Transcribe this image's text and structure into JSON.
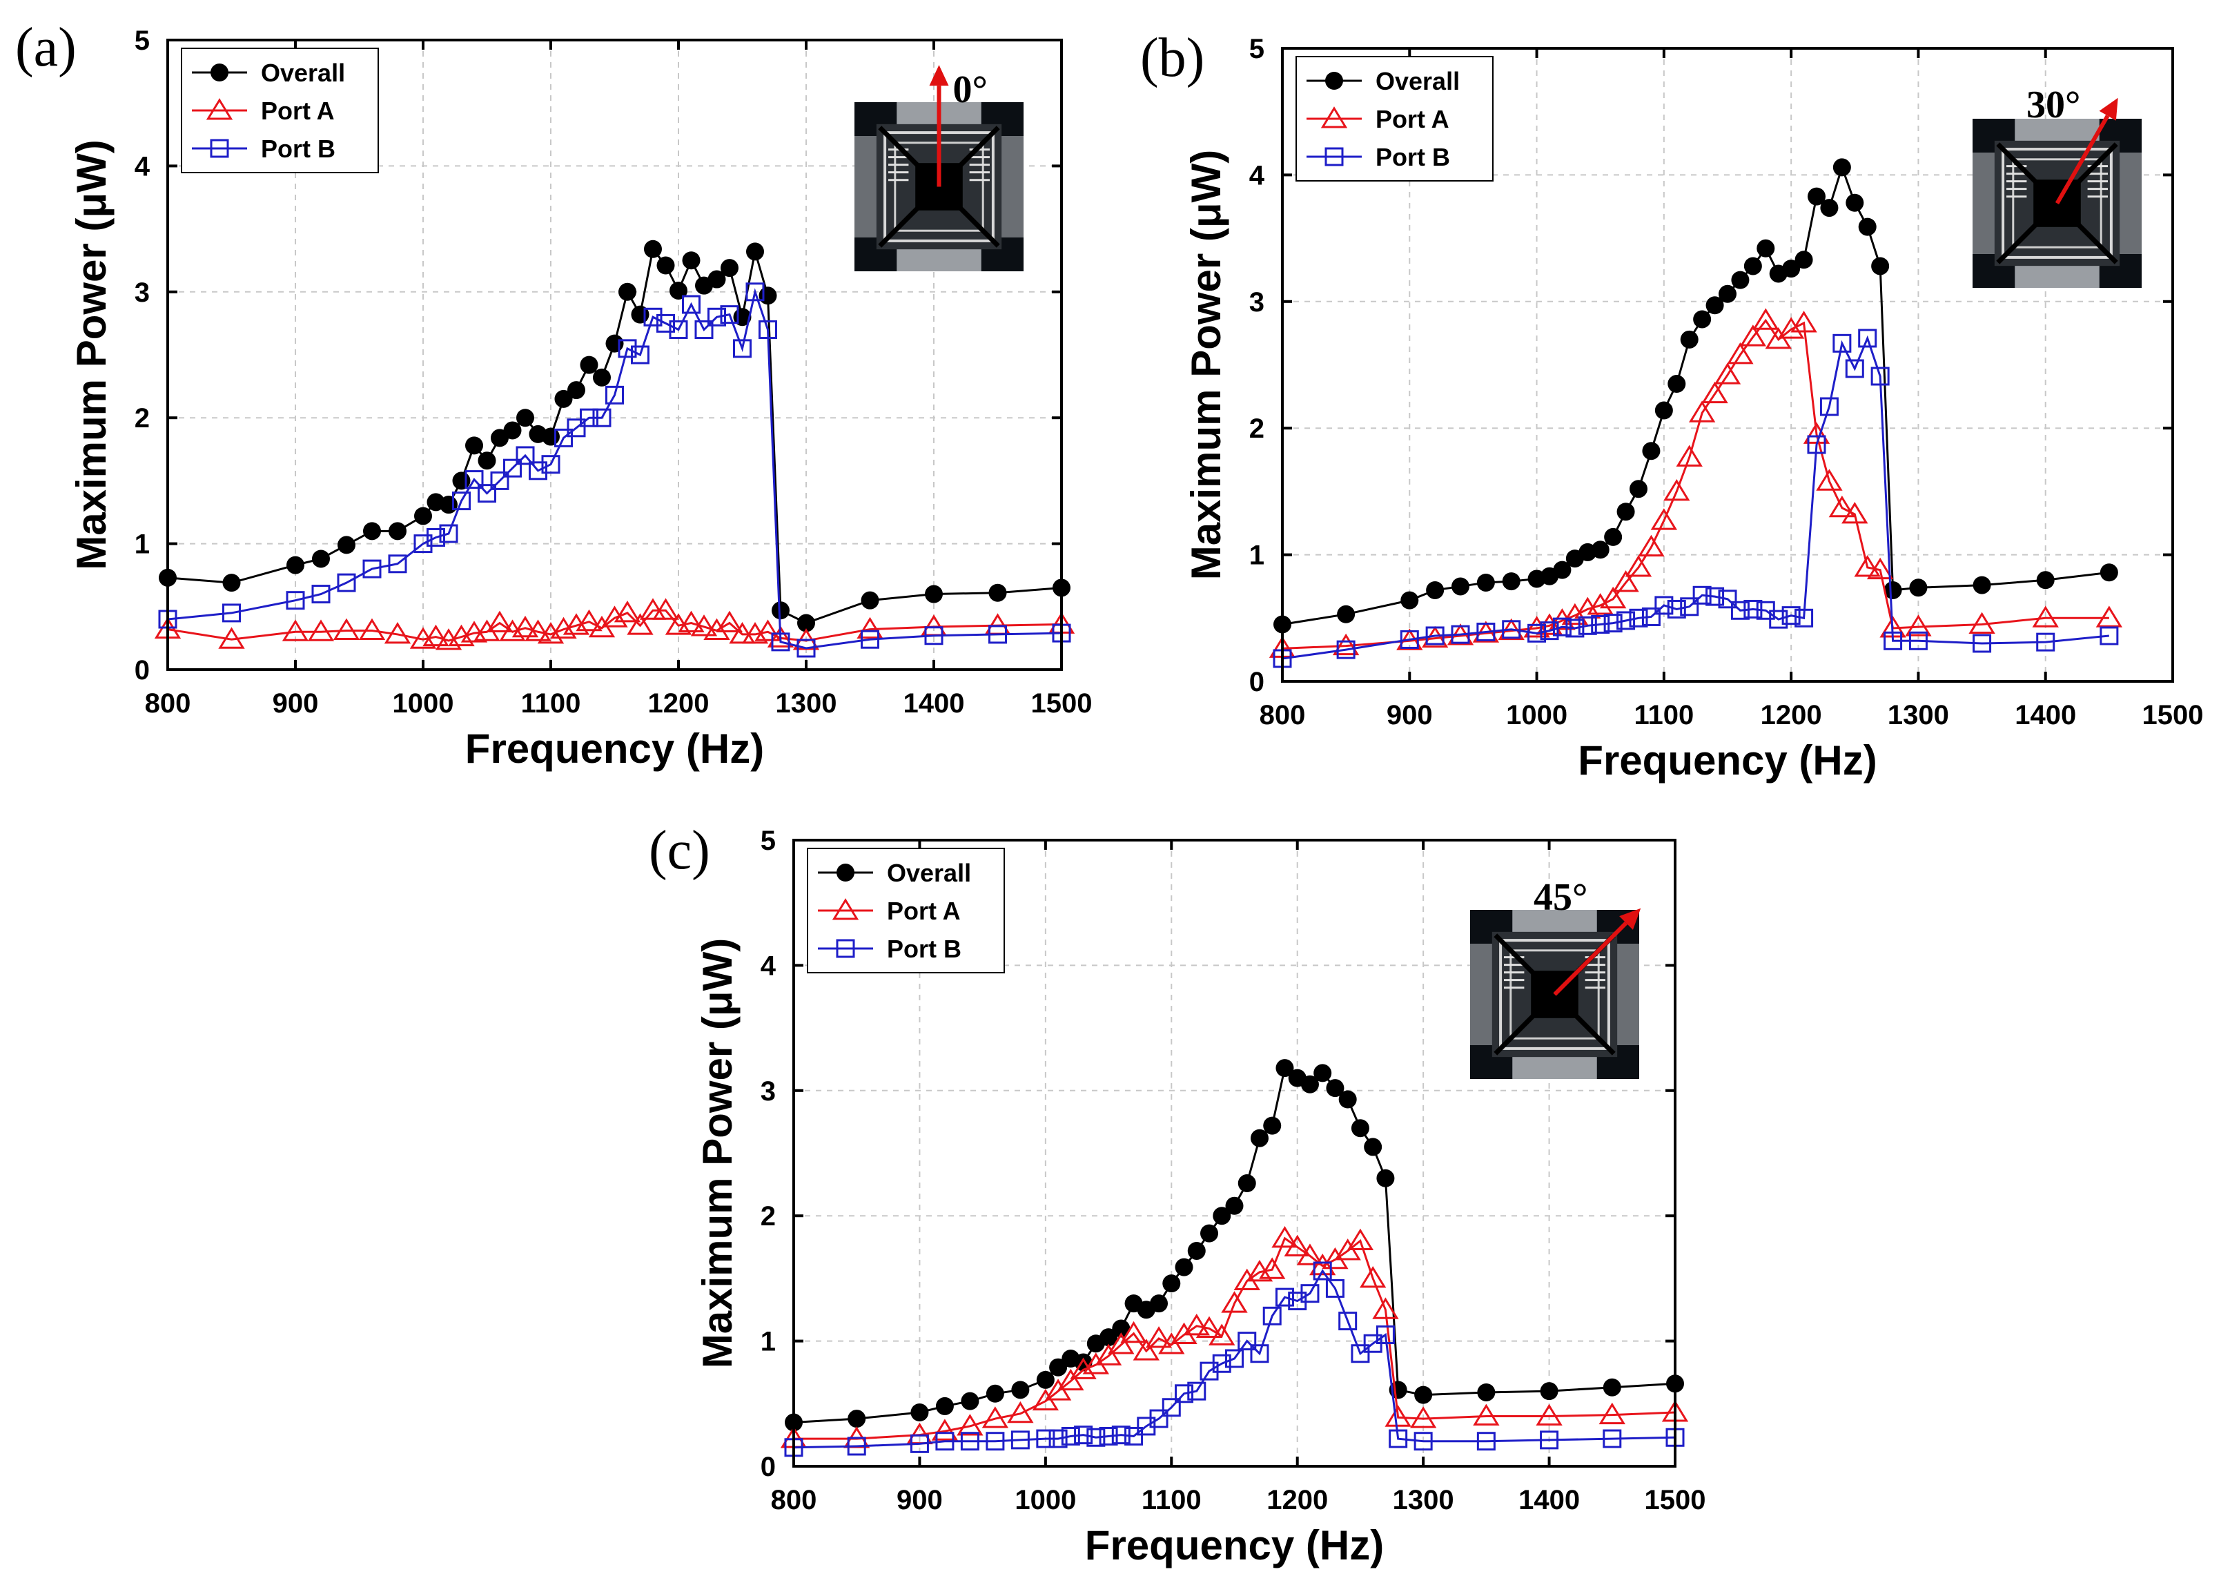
{
  "chart_data": [
    {
      "type": "line",
      "panel_label": "(a)",
      "angle_label": "0°",
      "xlabel": "Frequency (Hz)",
      "ylabel": "Maximum Power (μW)",
      "xlim": [
        800,
        1500
      ],
      "ylim": [
        0,
        5
      ],
      "xticks": [
        800,
        900,
        1000,
        1100,
        1200,
        1300,
        1400,
        1500
      ],
      "yticks": [
        0,
        1,
        2,
        3,
        4,
        5
      ],
      "grid": true,
      "legend_position": "top-left",
      "series": [
        {
          "name": "Overall",
          "color": "#000000",
          "marker": "filled-circle",
          "x": [
            800,
            850,
            900,
            920,
            940,
            960,
            980,
            1000,
            1010,
            1020,
            1030,
            1040,
            1050,
            1060,
            1070,
            1080,
            1090,
            1100,
            1110,
            1120,
            1130,
            1140,
            1150,
            1160,
            1170,
            1180,
            1190,
            1200,
            1210,
            1220,
            1230,
            1240,
            1250,
            1260,
            1270,
            1280,
            1300,
            1350,
            1400,
            1450,
            1500
          ],
          "y": [
            0.73,
            0.69,
            0.83,
            0.88,
            0.99,
            1.1,
            1.1,
            1.22,
            1.33,
            1.31,
            1.5,
            1.78,
            1.66,
            1.84,
            1.9,
            2.0,
            1.87,
            1.85,
            2.15,
            2.22,
            2.42,
            2.32,
            2.59,
            3.0,
            2.82,
            3.34,
            3.21,
            3.01,
            3.25,
            3.05,
            3.1,
            3.19,
            2.8,
            3.32,
            2.97,
            0.47,
            0.37,
            0.55,
            0.6,
            0.61,
            0.65
          ]
        },
        {
          "name": "Port A",
          "color": "#e8141b",
          "marker": "open-triangle",
          "x": [
            800,
            850,
            900,
            920,
            940,
            960,
            980,
            1000,
            1010,
            1020,
            1030,
            1040,
            1050,
            1060,
            1070,
            1080,
            1090,
            1100,
            1110,
            1120,
            1130,
            1140,
            1150,
            1160,
            1170,
            1180,
            1190,
            1200,
            1210,
            1220,
            1230,
            1240,
            1250,
            1260,
            1270,
            1280,
            1300,
            1350,
            1400,
            1450,
            1500
          ],
          "y": [
            0.32,
            0.24,
            0.3,
            0.3,
            0.31,
            0.31,
            0.28,
            0.24,
            0.26,
            0.23,
            0.26,
            0.29,
            0.3,
            0.37,
            0.3,
            0.33,
            0.3,
            0.28,
            0.32,
            0.35,
            0.38,
            0.33,
            0.41,
            0.45,
            0.35,
            0.47,
            0.47,
            0.35,
            0.37,
            0.34,
            0.31,
            0.37,
            0.28,
            0.28,
            0.3,
            0.25,
            0.23,
            0.32,
            0.34,
            0.35,
            0.36
          ]
        },
        {
          "name": "Port B",
          "color": "#1e1ec8",
          "marker": "open-square",
          "x": [
            800,
            850,
            900,
            920,
            940,
            960,
            980,
            1000,
            1010,
            1020,
            1030,
            1040,
            1050,
            1060,
            1070,
            1080,
            1090,
            1100,
            1110,
            1120,
            1130,
            1140,
            1150,
            1160,
            1170,
            1180,
            1190,
            1200,
            1210,
            1220,
            1230,
            1240,
            1250,
            1260,
            1270,
            1280,
            1300,
            1350,
            1400,
            1450,
            1500
          ],
          "y": [
            0.4,
            0.45,
            0.55,
            0.6,
            0.69,
            0.8,
            0.84,
            1.0,
            1.05,
            1.08,
            1.34,
            1.51,
            1.4,
            1.5,
            1.6,
            1.7,
            1.58,
            1.63,
            1.84,
            1.92,
            2.0,
            2.0,
            2.18,
            2.55,
            2.5,
            2.8,
            2.75,
            2.7,
            2.9,
            2.7,
            2.8,
            2.82,
            2.55,
            3.0,
            2.7,
            0.22,
            0.17,
            0.24,
            0.27,
            0.28,
            0.29
          ]
        }
      ]
    },
    {
      "type": "line",
      "panel_label": "(b)",
      "angle_label": "30°",
      "xlabel": "Frequency (Hz)",
      "ylabel": "Maximum Power (μW)",
      "xlim": [
        800,
        1500
      ],
      "ylim": [
        0,
        5
      ],
      "xticks": [
        800,
        900,
        1000,
        1100,
        1200,
        1300,
        1400,
        1500
      ],
      "yticks": [
        0,
        1,
        2,
        3,
        4,
        5
      ],
      "grid": true,
      "legend_position": "top-left",
      "series": [
        {
          "name": "Overall",
          "color": "#000000",
          "marker": "filled-circle",
          "x": [
            800,
            850,
            900,
            920,
            940,
            960,
            980,
            1000,
            1010,
            1020,
            1030,
            1040,
            1050,
            1060,
            1070,
            1080,
            1090,
            1100,
            1110,
            1120,
            1130,
            1140,
            1150,
            1160,
            1170,
            1180,
            1190,
            1200,
            1210,
            1220,
            1230,
            1240,
            1250,
            1260,
            1270,
            1280,
            1300,
            1350,
            1400,
            1450
          ],
          "y": [
            0.45,
            0.53,
            0.64,
            0.72,
            0.75,
            0.78,
            0.79,
            0.81,
            0.83,
            0.88,
            0.97,
            1.02,
            1.04,
            1.14,
            1.34,
            1.52,
            1.82,
            2.14,
            2.35,
            2.7,
            2.86,
            2.97,
            3.06,
            3.17,
            3.28,
            3.42,
            3.22,
            3.26,
            3.33,
            3.83,
            3.74,
            4.06,
            3.78,
            3.59,
            3.28,
            0.72,
            0.74,
            0.76,
            0.8,
            0.86
          ]
        },
        {
          "name": "Port A",
          "color": "#e8141b",
          "marker": "open-triangle",
          "x": [
            800,
            850,
            900,
            920,
            940,
            960,
            980,
            1000,
            1010,
            1020,
            1030,
            1040,
            1050,
            1060,
            1070,
            1080,
            1090,
            1100,
            1110,
            1120,
            1130,
            1140,
            1150,
            1160,
            1170,
            1180,
            1190,
            1200,
            1210,
            1220,
            1230,
            1240,
            1250,
            1260,
            1270,
            1280,
            1300,
            1350,
            1400,
            1450
          ],
          "y": [
            0.26,
            0.28,
            0.32,
            0.34,
            0.36,
            0.38,
            0.4,
            0.42,
            0.44,
            0.48,
            0.52,
            0.57,
            0.6,
            0.65,
            0.78,
            0.9,
            1.06,
            1.27,
            1.5,
            1.77,
            2.12,
            2.27,
            2.42,
            2.58,
            2.72,
            2.85,
            2.7,
            2.78,
            2.83,
            1.95,
            1.58,
            1.37,
            1.32,
            0.9,
            0.88,
            0.42,
            0.43,
            0.45,
            0.5,
            0.5
          ]
        },
        {
          "name": "Port B",
          "color": "#1e1ec8",
          "marker": "open-square",
          "x": [
            800,
            850,
            900,
            920,
            940,
            960,
            980,
            1000,
            1010,
            1020,
            1030,
            1040,
            1050,
            1060,
            1070,
            1080,
            1090,
            1100,
            1110,
            1120,
            1130,
            1140,
            1150,
            1160,
            1170,
            1180,
            1190,
            1200,
            1210,
            1220,
            1230,
            1240,
            1250,
            1260,
            1270,
            1280,
            1300,
            1350,
            1400,
            1450
          ],
          "y": [
            0.18,
            0.25,
            0.33,
            0.36,
            0.37,
            0.39,
            0.41,
            0.38,
            0.4,
            0.43,
            0.42,
            0.44,
            0.45,
            0.46,
            0.48,
            0.5,
            0.51,
            0.6,
            0.57,
            0.59,
            0.68,
            0.67,
            0.65,
            0.56,
            0.57,
            0.56,
            0.49,
            0.52,
            0.5,
            1.87,
            2.17,
            2.67,
            2.47,
            2.71,
            2.41,
            0.32,
            0.32,
            0.3,
            0.31,
            0.36
          ]
        }
      ]
    },
    {
      "type": "line",
      "panel_label": "(c)",
      "angle_label": "45°",
      "xlabel": "Frequency (Hz)",
      "ylabel": "Maximum Power (μW)",
      "xlim": [
        800,
        1500
      ],
      "ylim": [
        0,
        5
      ],
      "xticks": [
        800,
        900,
        1000,
        1100,
        1200,
        1300,
        1400,
        1500
      ],
      "yticks": [
        0,
        1,
        2,
        3,
        4,
        5
      ],
      "grid": true,
      "legend_position": "top-left",
      "series": [
        {
          "name": "Overall",
          "color": "#000000",
          "marker": "filled-circle",
          "x": [
            800,
            850,
            900,
            920,
            940,
            960,
            980,
            1000,
            1010,
            1020,
            1030,
            1040,
            1050,
            1060,
            1070,
            1080,
            1090,
            1100,
            1110,
            1120,
            1130,
            1140,
            1150,
            1160,
            1170,
            1180,
            1190,
            1200,
            1210,
            1220,
            1230,
            1240,
            1250,
            1260,
            1270,
            1280,
            1300,
            1350,
            1400,
            1450,
            1500
          ],
          "y": [
            0.35,
            0.38,
            0.43,
            0.48,
            0.52,
            0.58,
            0.61,
            0.69,
            0.79,
            0.86,
            0.83,
            0.98,
            1.03,
            1.1,
            1.3,
            1.25,
            1.3,
            1.46,
            1.59,
            1.72,
            1.86,
            2.0,
            2.08,
            2.26,
            2.62,
            2.72,
            3.18,
            3.1,
            3.05,
            3.14,
            3.02,
            2.93,
            2.7,
            2.55,
            2.3,
            0.61,
            0.57,
            0.59,
            0.6,
            0.63,
            0.66
          ]
        },
        {
          "name": "Port A",
          "color": "#e8141b",
          "marker": "open-triangle",
          "x": [
            800,
            850,
            900,
            920,
            940,
            960,
            980,
            1000,
            1010,
            1020,
            1030,
            1040,
            1050,
            1060,
            1070,
            1080,
            1090,
            1100,
            1110,
            1120,
            1130,
            1140,
            1150,
            1160,
            1170,
            1180,
            1190,
            1200,
            1210,
            1220,
            1230,
            1240,
            1250,
            1260,
            1270,
            1280,
            1300,
            1350,
            1400,
            1450,
            1500
          ],
          "y": [
            0.22,
            0.22,
            0.25,
            0.28,
            0.32,
            0.38,
            0.42,
            0.52,
            0.6,
            0.68,
            0.77,
            0.81,
            0.88,
            0.97,
            1.06,
            0.92,
            1.02,
            0.97,
            1.05,
            1.12,
            1.1,
            1.04,
            1.3,
            1.48,
            1.55,
            1.57,
            1.82,
            1.75,
            1.68,
            1.6,
            1.65,
            1.72,
            1.8,
            1.5,
            1.25,
            0.39,
            0.38,
            0.4,
            0.4,
            0.41,
            0.43
          ]
        },
        {
          "name": "Port B",
          "color": "#1e1ec8",
          "marker": "open-square",
          "x": [
            800,
            850,
            900,
            920,
            940,
            960,
            980,
            1000,
            1010,
            1020,
            1030,
            1040,
            1050,
            1060,
            1070,
            1080,
            1090,
            1100,
            1110,
            1120,
            1130,
            1140,
            1150,
            1160,
            1170,
            1180,
            1190,
            1200,
            1210,
            1220,
            1230,
            1240,
            1250,
            1260,
            1270,
            1280,
            1300,
            1350,
            1400,
            1450,
            1500
          ],
          "y": [
            0.15,
            0.16,
            0.18,
            0.2,
            0.2,
            0.2,
            0.21,
            0.22,
            0.22,
            0.24,
            0.25,
            0.23,
            0.24,
            0.25,
            0.24,
            0.32,
            0.38,
            0.47,
            0.58,
            0.6,
            0.76,
            0.82,
            0.86,
            1.0,
            0.9,
            1.2,
            1.35,
            1.32,
            1.38,
            1.56,
            1.42,
            1.16,
            0.9,
            0.98,
            1.05,
            0.22,
            0.2,
            0.2,
            0.21,
            0.22,
            0.23
          ]
        }
      ]
    }
  ]
}
